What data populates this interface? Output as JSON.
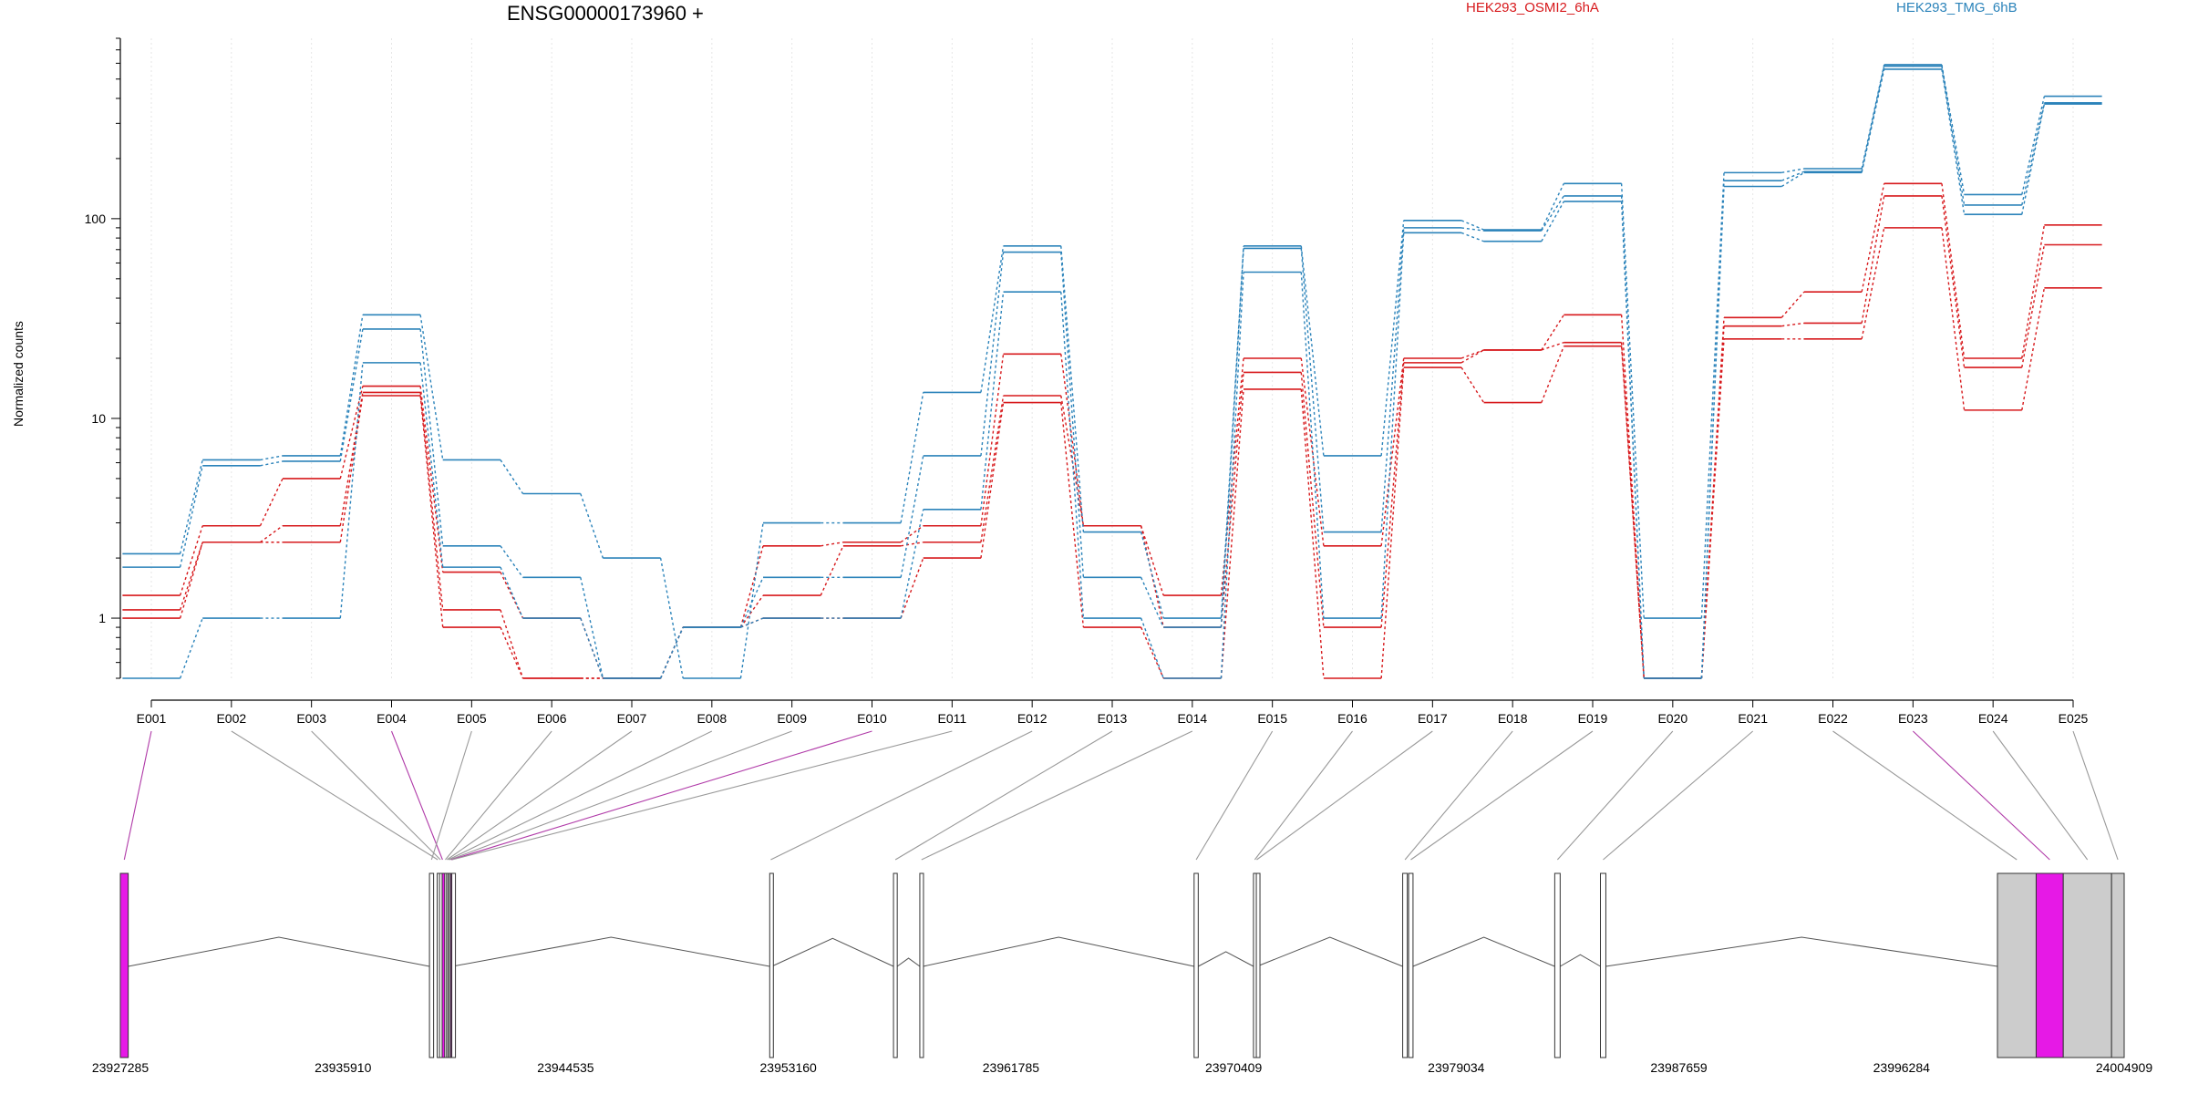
{
  "header": {
    "title": "ENSG00000173960 +",
    "legend": [
      {
        "label": "HEK293_OSMI2_6hA",
        "color": "#d7191c"
      },
      {
        "label": "HEK293_TMG_6hB",
        "color": "#2b83ba"
      }
    ]
  },
  "chart_data": [
    {
      "type": "line",
      "title": "ENSG00000173960 +",
      "ylabel": "Normalized counts",
      "yscale": "log",
      "ylim": [
        0.5,
        800
      ],
      "yticks": [
        1,
        10,
        100
      ],
      "ytick_labels": [
        "1",
        "10",
        "100"
      ],
      "grid": "vertical dotted lines at exon positions",
      "legend_position": "top",
      "categories": [
        "E001",
        "E002",
        "E003",
        "E004",
        "E005",
        "E006",
        "E007",
        "E008",
        "E009",
        "E010",
        "E011",
        "E012",
        "E013",
        "E014",
        "E015",
        "E016",
        "E017",
        "E018",
        "E019",
        "E020",
        "E021",
        "E022",
        "E023",
        "E024",
        "E025"
      ],
      "series": [
        {
          "name": "HEK293_OSMI2_6hA",
          "color": "#d7191c",
          "values": [
            1.3,
            2.9,
            5.0,
            14.5,
            1.7,
            1.0,
            0.5,
            0.9,
            2.3,
            2.4,
            2.9,
            21.0,
            2.9,
            1.3,
            20.0,
            2.3,
            20.0,
            22.0,
            33.0,
            0.5,
            32.0,
            43.0,
            150.0,
            20.0,
            93.0
          ]
        },
        {
          "name": "HEK293_OSMI2_6hA",
          "color": "#d7191c",
          "values": [
            1.1,
            2.4,
            2.9,
            13.5,
            1.1,
            0.5,
            0.5,
            0.9,
            1.3,
            2.3,
            2.4,
            13.0,
            2.9,
            0.9,
            17.0,
            0.9,
            19.0,
            22.0,
            24.0,
            0.5,
            29.0,
            30.0,
            130.0,
            18.0,
            74.0
          ]
        },
        {
          "name": "HEK293_OSMI2_6hA",
          "color": "#d7191c",
          "values": [
            1.0,
            2.4,
            2.4,
            13.0,
            0.9,
            0.5,
            0.5,
            0.9,
            1.0,
            1.0,
            2.0,
            12.0,
            0.9,
            0.5,
            14.0,
            0.5,
            18.0,
            12.0,
            23.0,
            0.5,
            25.0,
            25.0,
            90.0,
            11.0,
            45.0
          ]
        },
        {
          "name": "HEK293_TMG_6hB",
          "color": "#2b83ba",
          "values": [
            2.1,
            6.2,
            6.5,
            33.0,
            6.2,
            4.2,
            2.0,
            0.5,
            3.0,
            3.0,
            13.5,
            73.0,
            2.7,
            1.0,
            73.0,
            6.5,
            98.0,
            88.0,
            150.0,
            1.0,
            170.0,
            178.0,
            590.0,
            132.0,
            410.0
          ]
        },
        {
          "name": "HEK293_TMG_6hB",
          "color": "#2b83ba",
          "values": [
            1.8,
            5.8,
            6.1,
            28.0,
            2.3,
            1.6,
            0.5,
            0.9,
            1.6,
            1.6,
            6.5,
            68.0,
            1.6,
            0.9,
            71.0,
            2.7,
            90.0,
            87.0,
            130.0,
            0.5,
            155.0,
            172.0,
            580.0,
            117.0,
            380.0
          ]
        },
        {
          "name": "HEK293_TMG_6hB",
          "color": "#2b83ba",
          "values": [
            0.5,
            1.0,
            1.0,
            19.0,
            1.8,
            1.0,
            0.5,
            0.9,
            1.0,
            1.0,
            3.5,
            43.0,
            1.0,
            0.5,
            54.0,
            1.0,
            85.0,
            77.0,
            122.0,
            0.5,
            145.0,
            170.0,
            560.0,
            105.0,
            375.0
          ]
        }
      ]
    },
    {
      "type": "gene-model",
      "xlabel_ticks": [
        "23927285",
        "23935910",
        "23944535",
        "23953160",
        "23961785",
        "23970409",
        "23979034",
        "23987659",
        "23996284",
        "24004909"
      ],
      "xlim": [
        23927285,
        24004909
      ],
      "highlight_color": "#e619e6",
      "exon_fill": "#ffffff",
      "utr_fill": "#cccccc",
      "exons": [
        {
          "id": "E001",
          "start": 23927285,
          "end": 23927590,
          "highlight": true
        },
        {
          "id": "E002",
          "start": 23939560,
          "end": 23939600
        },
        {
          "id": "E003",
          "start": 23939650,
          "end": 23939720
        },
        {
          "id": "E004",
          "start": 23939750,
          "end": 23939780,
          "highlight": true
        },
        {
          "id": "E005",
          "start": 23939260,
          "end": 23939420
        },
        {
          "id": "E006",
          "start": 23939850,
          "end": 23939900
        },
        {
          "id": "E007",
          "start": 23939920,
          "end": 23939960
        },
        {
          "id": "E008",
          "start": 23939975,
          "end": 23940015
        },
        {
          "id": "E009",
          "start": 23940030,
          "end": 23940070
        },
        {
          "id": "E010",
          "start": 23940080,
          "end": 23940120,
          "highlight": true
        },
        {
          "id": "E011",
          "start": 23940125,
          "end": 23940150
        },
        {
          "id": "E012",
          "start": 23952440,
          "end": 23952520
        },
        {
          "id": "E013",
          "start": 23957235,
          "end": 23957380
        },
        {
          "id": "E014",
          "start": 23958255,
          "end": 23958385
        },
        {
          "id": "E015",
          "start": 23968880,
          "end": 23969040
        },
        {
          "id": "E016",
          "start": 23971180,
          "end": 23971280
        },
        {
          "id": "E017",
          "start": 23971290,
          "end": 23971320
        },
        {
          "id": "E018",
          "start": 23976960,
          "end": 23977140
        },
        {
          "id": "E019",
          "start": 23977190,
          "end": 23977360
        },
        {
          "id": "E020",
          "start": 23982850,
          "end": 23983060
        },
        {
          "id": "E021",
          "start": 23984620,
          "end": 23984830
        },
        {
          "id": "E022",
          "start": 24000000,
          "end": 24001500
        },
        {
          "id": "E023",
          "start": 24001500,
          "end": 24002550,
          "highlight": true
        },
        {
          "id": "E024",
          "start": 24002550,
          "end": 24004420
        },
        {
          "id": "E025",
          "start": 24004420,
          "end": 24004909
        }
      ]
    }
  ]
}
